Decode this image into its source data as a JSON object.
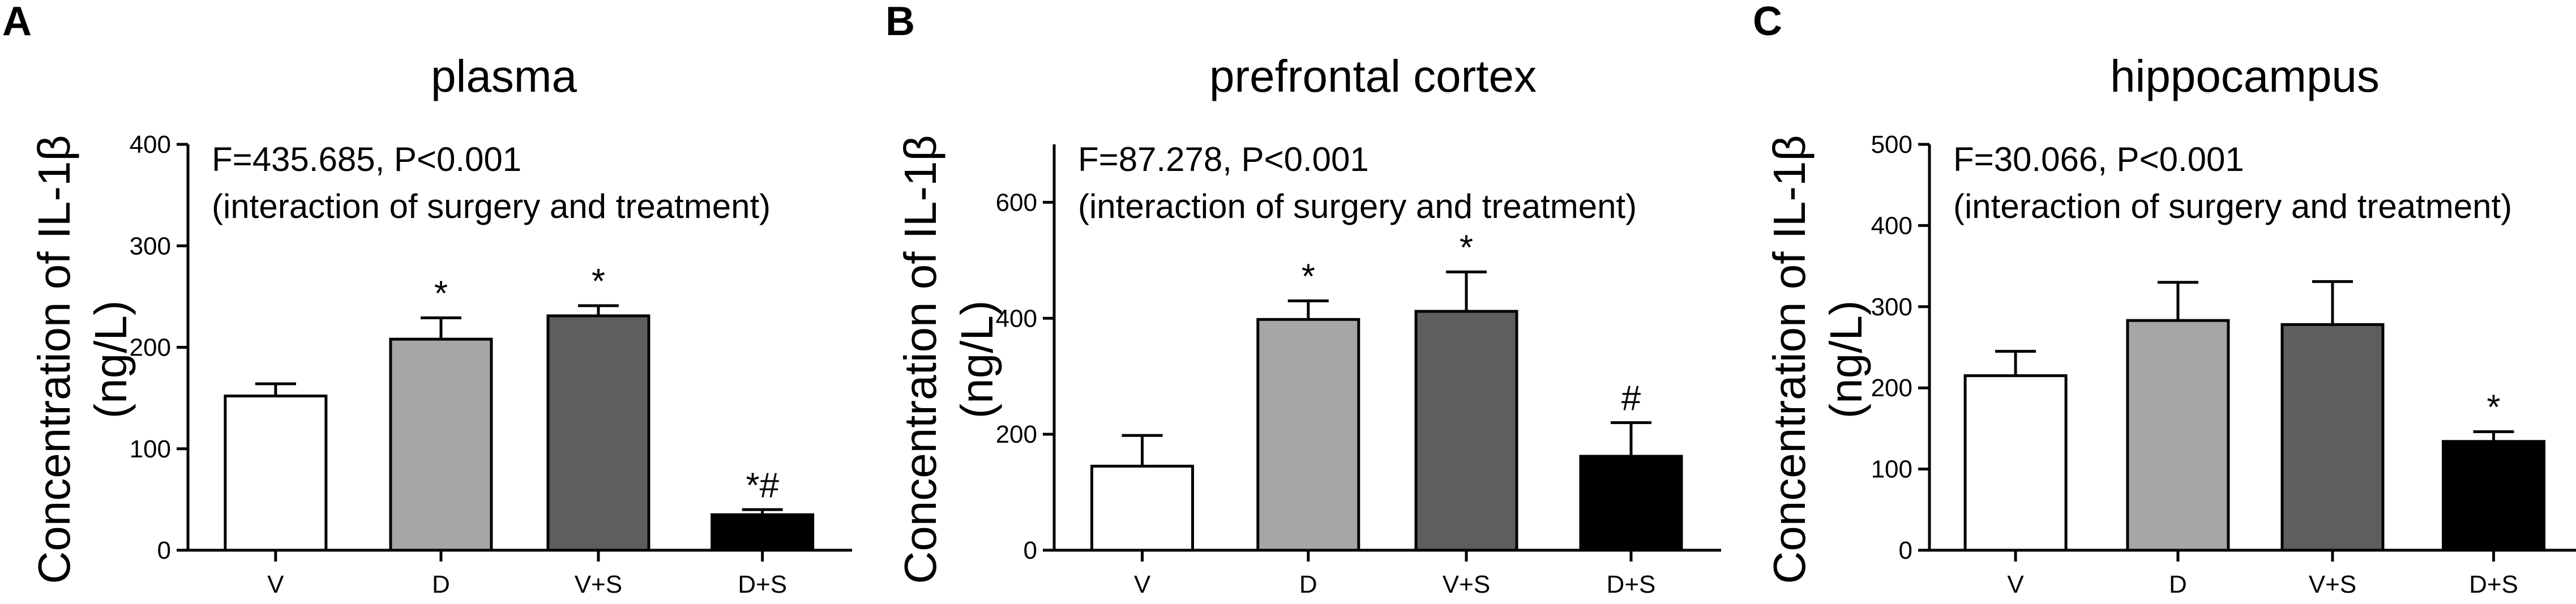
{
  "chart_data": [
    {
      "type": "bar",
      "panel_label": "A",
      "title": "plasma",
      "ylabel": "Concentration of IL-1β",
      "ylabel_unit": "(ng/L)",
      "stats_line1": "F=435.685, P<0.001",
      "stats_line2": "(interaction of surgery and treatment)",
      "categories": [
        "V",
        "D",
        "V+S",
        "D+S"
      ],
      "values": [
        152,
        208,
        231,
        35
      ],
      "errors": [
        12,
        21,
        10,
        5
      ],
      "annotations": [
        "",
        "*",
        "*",
        "*#"
      ],
      "ylim": [
        0,
        400
      ],
      "yticks": [
        0,
        100,
        200,
        300,
        400
      ],
      "bar_colors": [
        "#ffffff",
        "#a6a6a8",
        "#5e5e60",
        "#000000"
      ]
    },
    {
      "type": "bar",
      "panel_label": "B",
      "title": "prefrontal cortex",
      "ylabel": "Concentration of IL-1β",
      "ylabel_unit": "(ng/L)",
      "stats_line1": "F=87.278, P<0.001",
      "stats_line2": "(interaction of surgery and treatment)",
      "categories": [
        "V",
        "D",
        "V+S",
        "D+S"
      ],
      "values": [
        145,
        398,
        412,
        162
      ],
      "errors": [
        53,
        32,
        68,
        58
      ],
      "annotations": [
        "",
        "*",
        "*",
        "#"
      ],
      "ylim": [
        0,
        700
      ],
      "yticks": [
        0,
        200,
        400,
        600
      ],
      "bar_colors": [
        "#ffffff",
        "#a6a6a8",
        "#5e5e60",
        "#000000"
      ]
    },
    {
      "type": "bar",
      "panel_label": "C",
      "title": "hippocampus",
      "ylabel": "Concentration of IL-1β",
      "ylabel_unit": "(ng/L)",
      "stats_line1": "F=30.066, P<0.001",
      "stats_line2": "(interaction of surgery and treatment)",
      "categories": [
        "V",
        "D",
        "V+S",
        "D+S"
      ],
      "values": [
        215,
        283,
        278,
        134
      ],
      "errors": [
        30,
        47,
        53,
        12
      ],
      "annotations": [
        "",
        "",
        "",
        "*"
      ],
      "ylim": [
        0,
        500
      ],
      "yticks": [
        0,
        100,
        200,
        300,
        400,
        500
      ],
      "bar_colors": [
        "#ffffff",
        "#a6a6a8",
        "#5e5e60",
        "#000000"
      ]
    }
  ]
}
